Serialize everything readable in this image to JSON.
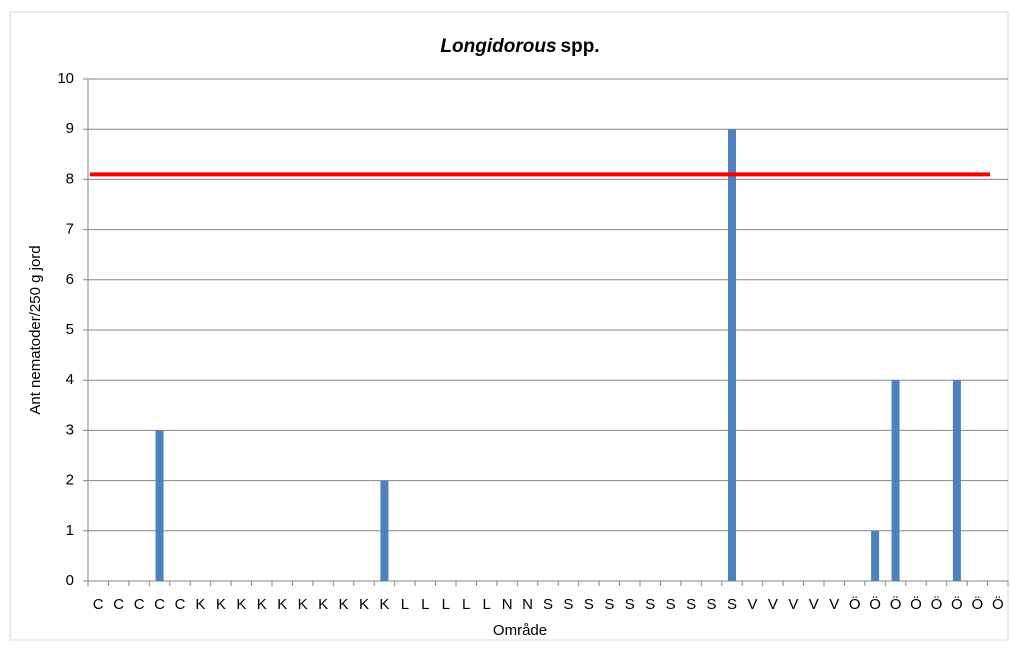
{
  "chart_data": {
    "type": "bar",
    "title_italic": "Longidorous",
    "title": "spp.",
    "x_label": "Område",
    "y_label": "Ant nematoder/250 g jord",
    "categories": [
      "C",
      "C",
      "C",
      "C",
      "C",
      "K",
      "K",
      "K",
      "K",
      "K",
      "K",
      "K",
      "K",
      "K",
      "K",
      "L",
      "L",
      "L",
      "L",
      "L",
      "N",
      "N",
      "S",
      "S",
      "S",
      "S",
      "S",
      "S",
      "S",
      "S",
      "S",
      "S",
      "V",
      "V",
      "V",
      "V",
      "V",
      "Ö",
      "Ö",
      "Ö",
      "Ö",
      "Ö",
      "Ö",
      "Ö",
      "Ö"
    ],
    "values": [
      0,
      0,
      0,
      3,
      0,
      0,
      0,
      0,
      0,
      0,
      0,
      0,
      0,
      0,
      2,
      0,
      0,
      0,
      0,
      0,
      0,
      0,
      0,
      0,
      0,
      0,
      0,
      0,
      0,
      0,
      0,
      9,
      0,
      0,
      0,
      0,
      0,
      0,
      1,
      4,
      0,
      0,
      4,
      0,
      0
    ],
    "color": "#4f81bd",
    "threshold": 8.1,
    "threshold_color": "#ff0000",
    "ylim": [
      0,
      10
    ],
    "yticks": [
      0,
      1,
      2,
      3,
      4,
      5,
      6,
      7,
      8,
      9,
      10
    ],
    "grid": true
  }
}
